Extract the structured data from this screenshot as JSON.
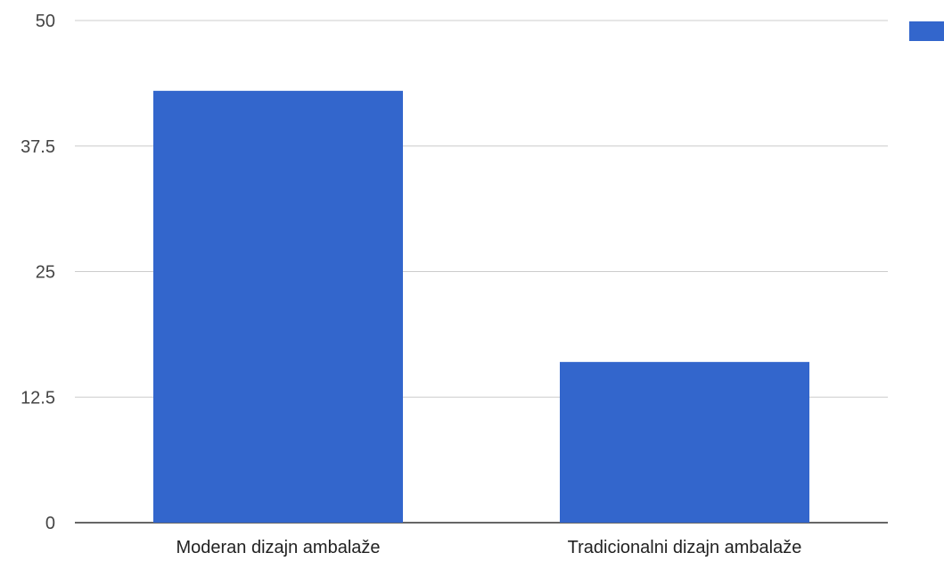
{
  "chart_data": {
    "type": "bar",
    "categories": [
      "Moderan dizajn ambalaže",
      "Tradicionalni dizajn ambalaže"
    ],
    "series": [
      {
        "values": [
          43,
          16
        ],
        "color": "#3366cc"
      }
    ],
    "ylim": [
      0,
      50
    ],
    "yticks": [
      "0",
      "12.5",
      "25",
      "37.5",
      "50"
    ],
    "ytick_values": [
      0,
      12.5,
      25,
      37.5,
      50
    ],
    "grid": true,
    "legend": "right",
    "colors": {
      "bar": "#3366cc",
      "grid": "#cccccc",
      "axis": "#333333"
    }
  }
}
